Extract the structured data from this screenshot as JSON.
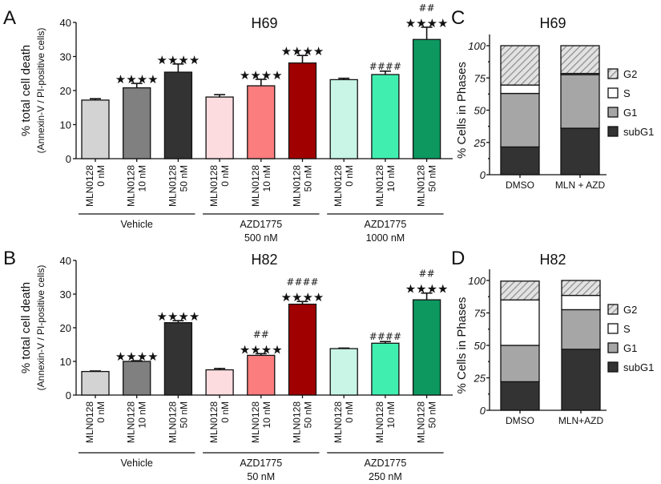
{
  "chart_data": [
    {
      "panel": "A",
      "type": "bar",
      "title": "H69",
      "ylabel": "% total cell death",
      "ylabel2": "(Annexin-V / PI-positive cells)",
      "ylim": [
        0,
        40
      ],
      "yticks": [
        0,
        10,
        20,
        30,
        40
      ],
      "bars": [
        {
          "label": [
            "MLN0128",
            "0 nM"
          ],
          "value": 17.2,
          "err": 0.4,
          "color": "#d3d3d3",
          "stars": "",
          "hash": ""
        },
        {
          "label": [
            "MLN0128",
            "10 nM"
          ],
          "value": 20.8,
          "err": 1.3,
          "color": "#808080",
          "stars": "****",
          "hash": ""
        },
        {
          "label": [
            "MLN0128",
            "50 nM"
          ],
          "value": 25.4,
          "err": 2.4,
          "color": "#333333",
          "stars": "****",
          "hash": ""
        },
        {
          "label": [
            "MLN0128",
            "0 nM"
          ],
          "value": 18.1,
          "err": 0.7,
          "color": "#fddcdf",
          "stars": "",
          "hash": ""
        },
        {
          "label": [
            "MLN0128",
            "10 nM"
          ],
          "value": 21.4,
          "err": 1.9,
          "color": "#fb7d7e",
          "stars": "****",
          "hash": ""
        },
        {
          "label": [
            "MLN0128",
            "50 nM"
          ],
          "value": 28.1,
          "err": 2.2,
          "color": "#a00000",
          "stars": "****",
          "hash": ""
        },
        {
          "label": [
            "MLN0128",
            "0 nM"
          ],
          "value": 23.2,
          "err": 0.4,
          "color": "#c8f5e5",
          "stars": "",
          "hash": ""
        },
        {
          "label": [
            "MLN0128",
            "10 nM"
          ],
          "value": 24.7,
          "err": 1.0,
          "color": "#40efb0",
          "stars": "",
          "hash": "####"
        },
        {
          "label": [
            "MLN0128",
            "50 nM"
          ],
          "value": 35.0,
          "err": 3.6,
          "color": "#0d9860",
          "stars": "****",
          "hash": "##"
        }
      ],
      "groups": [
        {
          "lines": [
            "Vehicle"
          ]
        },
        {
          "lines": [
            "AZD1775",
            "500 nM"
          ]
        },
        {
          "lines": [
            "AZD1775",
            "1000 nM"
          ]
        }
      ]
    },
    {
      "panel": "B",
      "type": "bar",
      "title": "H82",
      "ylabel": "% total cell death",
      "ylabel2": "(Annexin-V / PI-positive cells)",
      "ylim": [
        0,
        40
      ],
      "yticks": [
        0,
        10,
        20,
        30,
        40
      ],
      "bars": [
        {
          "label": [
            "MLN0128",
            "0 nM"
          ],
          "value": 7.0,
          "err": 0.15,
          "color": "#d3d3d3",
          "stars": "",
          "hash": ""
        },
        {
          "label": [
            "MLN0128",
            "10 nM"
          ],
          "value": 10.0,
          "err": 0.2,
          "color": "#808080",
          "stars": "****",
          "hash": ""
        },
        {
          "label": [
            "MLN0128",
            "50 nM"
          ],
          "value": 21.5,
          "err": 0.6,
          "color": "#333333",
          "stars": "****",
          "hash": ""
        },
        {
          "label": [
            "MLN0128",
            "0 nM"
          ],
          "value": 7.5,
          "err": 0.4,
          "color": "#fddcdf",
          "stars": "",
          "hash": ""
        },
        {
          "label": [
            "MLN0128",
            "10 nM"
          ],
          "value": 11.8,
          "err": 0.5,
          "color": "#fb7d7e",
          "stars": "****",
          "hash": "##"
        },
        {
          "label": [
            "MLN0128",
            "50 nM"
          ],
          "value": 27.0,
          "err": 0.8,
          "color": "#a00000",
          "stars": "****",
          "hash": "####"
        },
        {
          "label": [
            "MLN0128",
            "0 nM"
          ],
          "value": 13.8,
          "err": 0.15,
          "color": "#c8f5e5",
          "stars": "",
          "hash": ""
        },
        {
          "label": [
            "MLN0128",
            "10 nM"
          ],
          "value": 15.4,
          "err": 0.5,
          "color": "#40efb0",
          "stars": "",
          "hash": "####"
        },
        {
          "label": [
            "MLN0128",
            "50 nM"
          ],
          "value": 28.3,
          "err": 2.0,
          "color": "#0d9860",
          "stars": "****",
          "hash": "##"
        }
      ],
      "groups": [
        {
          "lines": [
            "Vehicle"
          ]
        },
        {
          "lines": [
            "AZD1775",
            "50 nM"
          ]
        },
        {
          "lines": [
            "AZD1775",
            "250 nM"
          ]
        }
      ]
    },
    {
      "panel": "C",
      "type": "bar",
      "stacked": true,
      "title": "H69",
      "ylabel": "% Cells in Phases",
      "ylim": [
        0,
        100
      ],
      "yticks": [
        0,
        25,
        50,
        75,
        100
      ],
      "categories": [
        "DMSO",
        "MLN + AZD"
      ],
      "series": [
        {
          "name": "subG1",
          "values": [
            21.5,
            36.0
          ],
          "color": "#333333"
        },
        {
          "name": "G1",
          "values": [
            41.5,
            41.5
          ],
          "color": "#a6a6a6"
        },
        {
          "name": "S",
          "values": [
            6.5,
            1.0
          ],
          "color": "#ffffff"
        },
        {
          "name": "G2",
          "values": [
            30.5,
            21.5
          ],
          "color": "hatch"
        }
      ],
      "legend": [
        "G2",
        "S",
        "G1",
        "subG1"
      ],
      "legend_position": "right"
    },
    {
      "panel": "D",
      "type": "bar",
      "stacked": true,
      "title": "H82",
      "ylabel": "% Cells in Phases",
      "ylim": [
        0,
        100
      ],
      "yticks": [
        0,
        25,
        50,
        75,
        100
      ],
      "categories": [
        "DMSO",
        "MLN+AZD"
      ],
      "series": [
        {
          "name": "subG1",
          "values": [
            22.0,
            47.0
          ],
          "color": "#333333"
        },
        {
          "name": "G1",
          "values": [
            28.0,
            30.5
          ],
          "color": "#a6a6a6"
        },
        {
          "name": "S",
          "values": [
            35.0,
            11.0
          ],
          "color": "#ffffff"
        },
        {
          "name": "G2",
          "values": [
            14.5,
            11.5
          ],
          "color": "hatch"
        }
      ],
      "legend": [
        "G2",
        "S",
        "G1",
        "subG1"
      ],
      "legend_position": "right"
    }
  ]
}
